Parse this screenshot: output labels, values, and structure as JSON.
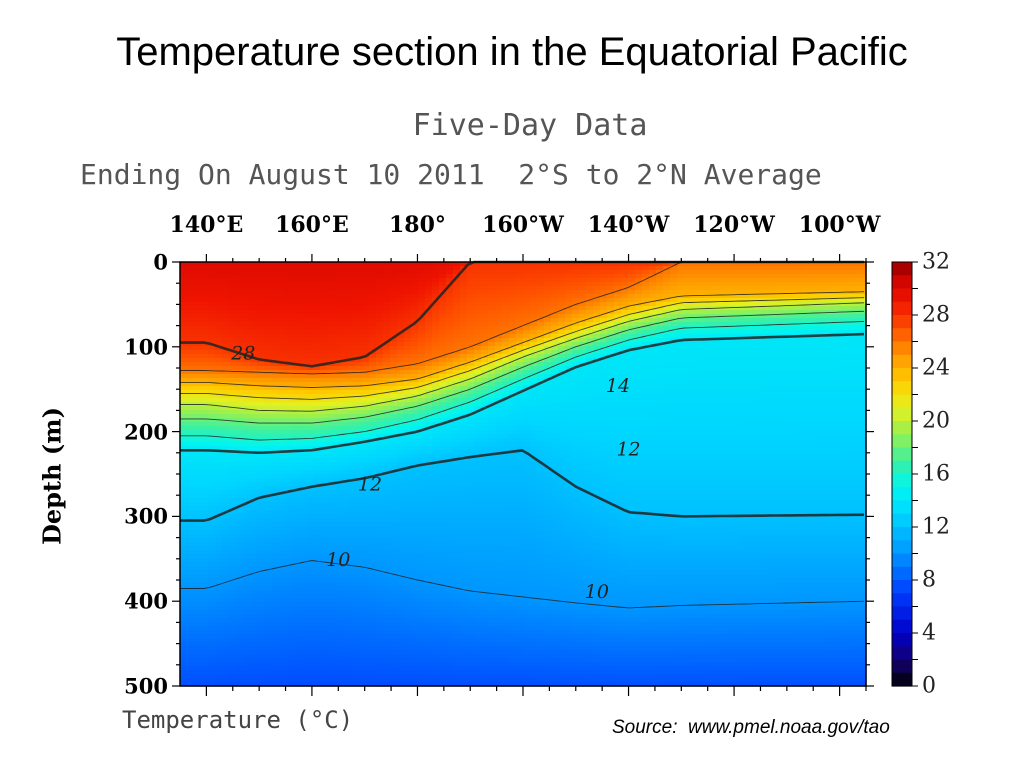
{
  "slide": {
    "title": "Temperature section in the Equatorial Pacific",
    "source": "Source:  www.pmel.noaa.gov/tao"
  },
  "chart_data": {
    "type": "heatmap",
    "title": "Five-Day Data",
    "subtitle": "Ending On August 10 2011  2°S to 2°N Average",
    "xlabel": "Temperature (°C)",
    "ylabel": "Depth (m)",
    "x_tick_labels": [
      "140°E",
      "160°E",
      "180°",
      "160°W",
      "140°W",
      "120°W",
      "100°W"
    ],
    "y_tick_labels": [
      "0",
      "100",
      "200",
      "300",
      "400",
      "500"
    ],
    "y_ticks": [
      0,
      100,
      200,
      300,
      400,
      500
    ],
    "ylim": [
      500,
      0
    ],
    "colorbar": {
      "ticks": [
        32,
        28,
        24,
        20,
        16,
        12,
        8,
        4,
        0
      ],
      "range": [
        0,
        32
      ]
    },
    "contour_labels": [
      {
        "value": "28",
        "lon": 147,
        "depth": 107
      },
      {
        "value": "14",
        "lon": -142,
        "depth": 145
      },
      {
        "value": "12",
        "lon": 171,
        "depth": 261
      },
      {
        "value": "12",
        "lon": -140,
        "depth": 220
      },
      {
        "value": "10",
        "lon": 165,
        "depth": 350
      },
      {
        "value": "10",
        "lon": -146,
        "depth": 388
      }
    ],
    "isotherms": [
      {
        "value": 28,
        "depths": [
          95,
          115,
          123,
          112,
          70,
          0,
          0,
          0,
          0,
          0,
          0
        ]
      },
      {
        "value": 26,
        "depths": [
          128,
          130,
          132,
          130,
          120,
          100,
          75,
          50,
          30,
          0,
          0
        ]
      },
      {
        "value": 24,
        "depths": [
          142,
          146,
          148,
          146,
          138,
          118,
          95,
          72,
          52,
          40,
          35
        ]
      },
      {
        "value": 22,
        "depths": [
          155,
          160,
          162,
          158,
          148,
          128,
          104,
          82,
          62,
          48,
          42
        ]
      },
      {
        "value": 20,
        "depths": [
          168,
          175,
          176,
          170,
          158,
          138,
          112,
          90,
          70,
          56,
          48
        ]
      },
      {
        "value": 18,
        "depths": [
          185,
          190,
          190,
          183,
          170,
          150,
          124,
          100,
          80,
          66,
          58
        ]
      },
      {
        "value": 16,
        "depths": [
          205,
          210,
          208,
          200,
          186,
          165,
          138,
          112,
          92,
          78,
          70
        ]
      },
      {
        "value": 14,
        "depths": [
          222,
          225,
          222,
          212,
          200,
          180,
          152,
          124,
          104,
          92,
          85
        ]
      },
      {
        "value": 12,
        "depths": [
          305,
          278,
          265,
          255,
          240,
          230,
          222,
          265,
          295,
          300,
          298
        ]
      },
      {
        "value": 10,
        "depths": [
          385,
          365,
          352,
          360,
          375,
          388,
          395,
          402,
          408,
          405,
          400
        ]
      }
    ],
    "isotherm_lons": [
      140,
      150,
      160,
      170,
      180,
      -170,
      -160,
      -150,
      -140,
      -130,
      -95
    ]
  }
}
